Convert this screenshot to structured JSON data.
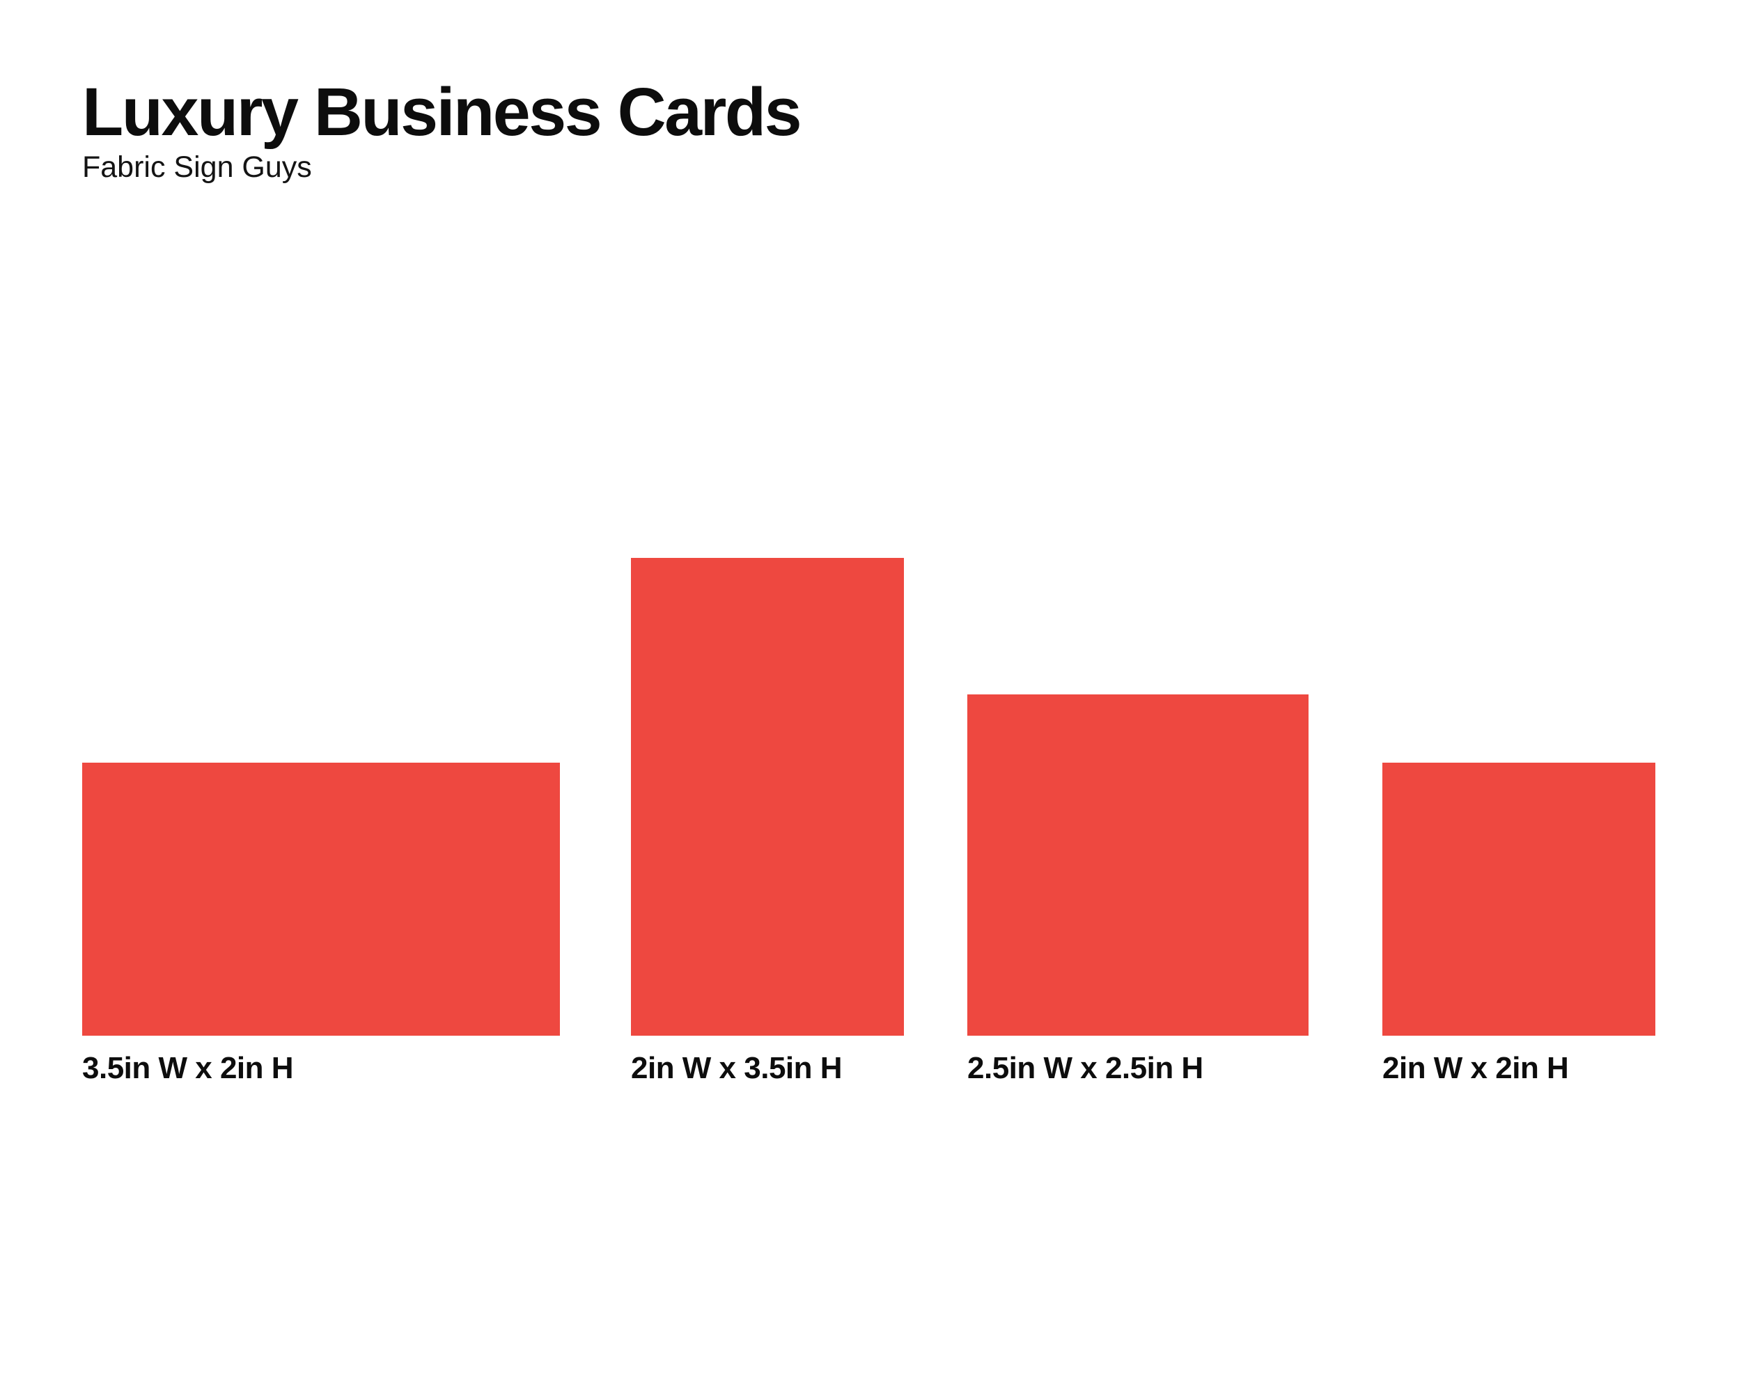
{
  "header": {
    "title": "Luxury Business Cards",
    "subtitle": "Fabric Sign Guys"
  },
  "colors": {
    "card_fill": "#EE4840",
    "text": "#0D0D0D",
    "background": "#FFFFFF"
  },
  "chart_data": {
    "type": "size-comparison",
    "unit": "inches",
    "items": [
      {
        "label": "3.5in W x 2in H",
        "width_in": 3.5,
        "height_in": 2
      },
      {
        "label": "2in W x 3.5in H",
        "width_in": 2,
        "height_in": 3.5
      },
      {
        "label": "2.5in W x 2.5in H",
        "width_in": 2.5,
        "height_in": 2.5
      },
      {
        "label": "2in W x 2in H",
        "width_in": 2,
        "height_in": 2
      }
    ]
  }
}
